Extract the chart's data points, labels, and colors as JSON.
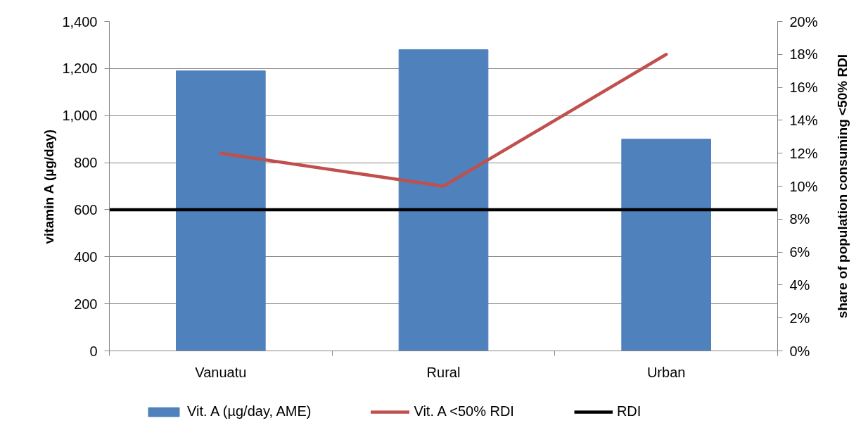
{
  "chart_data": {
    "type": "bar",
    "categories": [
      "Vanuatu",
      "Rural",
      "Urban"
    ],
    "series": [
      {
        "name": "Vit. A (µg/day, AME)",
        "color": "#4f81bd",
        "values": [
          1190,
          1280,
          900
        ]
      },
      {
        "name": "Vit. A <50% RDI",
        "type": "line",
        "axis": "y2",
        "color": "#c0504d",
        "values": [
          12,
          10,
          18
        ]
      }
    ],
    "ref_lines": [
      {
        "axis": "y",
        "value": 600,
        "label": "RDI",
        "color": "#000000"
      }
    ],
    "ylabel": "vitamin A (µg/day)",
    "y2label": "share of population consuming <50% RDI",
    "ylim": [
      0,
      1400
    ],
    "yticks": [
      0,
      200,
      400,
      600,
      800,
      {
        "value": 1000,
        "label": "1,000"
      },
      {
        "value": 1200,
        "label": "1,200"
      },
      {
        "value": 1400,
        "label": "1,400"
      }
    ],
    "y2lim": [
      0,
      20
    ],
    "y2ticks": [
      {
        "value": 0,
        "label": "0%"
      },
      {
        "value": 2,
        "label": "2%"
      },
      {
        "value": 4,
        "label": "4%"
      },
      {
        "value": 6,
        "label": "6%"
      },
      {
        "value": 8,
        "label": "8%"
      },
      {
        "value": 10,
        "label": "10%"
      },
      {
        "value": 12,
        "label": "12%"
      },
      {
        "value": 14,
        "label": "14%"
      },
      {
        "value": 16,
        "label": "16%"
      },
      {
        "value": 18,
        "label": "18%"
      },
      {
        "value": 20,
        "label": "20%"
      }
    ],
    "grid": "y",
    "legend": "bottom"
  }
}
